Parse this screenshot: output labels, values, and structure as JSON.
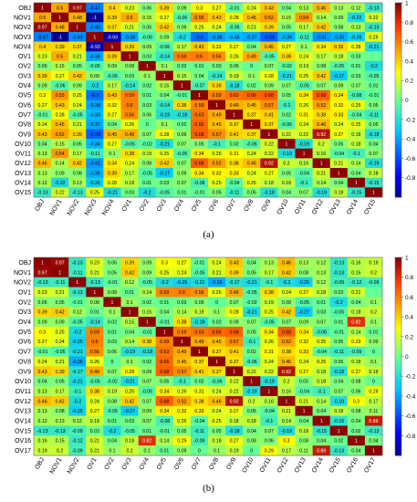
{
  "chart_data": [
    {
      "type": "heatmap",
      "panel_label": "(a)",
      "rows": [
        "OBJ",
        "NOV1",
        "NOV2",
        "NOV3",
        "NOV4",
        "OV1",
        "OV2",
        "OV3",
        "OV4",
        "OV5",
        "OV6",
        "OV7",
        "OV8",
        "OV9",
        "OV10",
        "OV11",
        "OV12",
        "OV13",
        "OV14",
        "OV15"
      ],
      "columns": [
        "OBJ",
        "NOV1",
        "NOV2",
        "NOV3",
        "NOV4",
        "OV1",
        "OV2",
        "OV3",
        "OV4",
        "OV5",
        "OV6",
        "OV7",
        "OV8",
        "OV9",
        "OV10",
        "OV11",
        "OV12",
        "OV13",
        "OV14",
        "OV15"
      ],
      "values": [
        [
          "1",
          "0.5",
          "0.97",
          "-0.47",
          "0.4",
          "0.23",
          "0.06",
          "0.39",
          "0.09",
          "0.3",
          "0.27",
          "-0.01",
          "0.24",
          "0.43",
          "0.04",
          "0.13",
          "0.46",
          "0.13",
          "0.12",
          "-0.13"
        ],
        [
          "0.5",
          "1",
          "0.48",
          "-1",
          "0.39",
          "0.5",
          "0.15",
          "0.27",
          "-0.06",
          "0.55",
          "0.43",
          "0.28",
          "0.45",
          "0.52",
          "0.15",
          "0.54",
          "0.14",
          "0.09",
          "-0.22",
          "0.22"
        ],
        [
          "0.97",
          "0.48",
          "1",
          "-0.43",
          "0.37",
          "0.21",
          "0.05",
          "0.42",
          "0.09",
          "0.25",
          "0.24",
          "-0.05",
          "0.21",
          "0.39",
          "0.05",
          "0.17",
          "0.42",
          "0.08",
          "0.13",
          "-0.13"
        ],
        [
          "-0.47",
          "-1",
          "-0.43",
          "1",
          "-0.93",
          "-0.38",
          "-0.06",
          "0.09",
          "-0.2",
          "-0.5",
          "-0.38",
          "-0.33",
          "-0.37",
          "-0.53",
          "-0.34",
          "-0.11",
          "-0.41",
          "-0.36",
          "-0.26",
          "0.25"
        ],
        [
          "0.4",
          "0.39",
          "0.37",
          "-0.93",
          "1",
          "0.39",
          "0.09",
          "-0.06",
          "0.17",
          "0.43",
          "0.32",
          "0.27",
          "0.04",
          "0.45",
          "0.27",
          "0.1",
          "0.34",
          "0.39",
          "0.28",
          "-0.21"
        ],
        [
          "0.23",
          "0.5",
          "0.21",
          "-0.38",
          "0.39",
          "1",
          "0.03",
          "-0.14",
          "0.59",
          "0.6",
          "0.56",
          "0.26",
          "0.49",
          "-0.05",
          "0.38",
          "0.24",
          "0.17",
          "0.18",
          "0.03",
          ""
        ],
        [
          "0.06",
          "0.15",
          "0.05",
          "-0.06",
          "0.09",
          "0.08",
          "1",
          "0.1",
          "0.02",
          "0.01",
          "0.03",
          "0.06",
          "0",
          "0.07",
          "-0.02",
          "0.19",
          "0.08",
          "-0.05",
          "0.01",
          "-0.2"
        ],
        [
          "0.39",
          "0.27",
          "0.42",
          "0.09",
          "-0.06",
          "0.03",
          "0.1",
          "1",
          "0.15",
          "0.04",
          "-0.14",
          "0.19",
          "0.1",
          "0.28",
          "-0.21",
          "0.25",
          "0.42",
          "-0.27",
          "0.03",
          "-0.05"
        ],
        [
          "0.09",
          "-0.06",
          "0.09",
          "-0.2",
          "0.17",
          "-0.14",
          "0.02",
          "0.15",
          "1",
          "-0.07",
          "0.38",
          "-0.18",
          "0.02",
          "0.09",
          "0.07",
          "-0.05",
          "0.07",
          "0.09",
          "0.07",
          "0.01"
        ],
        [
          "0.3",
          "0.55",
          "0.25",
          "-0.5",
          "0.43",
          "0.59",
          "0.01",
          "0.04",
          "-0.01",
          "1",
          "0.59",
          "0.63",
          "0.66",
          "0.68",
          "0.05",
          "0.34",
          "0.68",
          "0.34",
          "-0.08",
          "-0.01"
        ],
        [
          "0.27",
          "0.43",
          "0.24",
          "-0.38",
          "0.32",
          "0.6",
          "0.03",
          "-0.14",
          "0.38",
          "0.59",
          "1",
          "0.49",
          "0.45",
          "0.57",
          "-0.1",
          "0.26",
          "0.52",
          "0.32",
          "0.25",
          "0.05"
        ],
        [
          "-0.01",
          "0.28",
          "-0.05",
          "-0.33",
          "0.27",
          "0.56",
          "0.06",
          "-0.19",
          "-0.18",
          "0.63",
          "0.49",
          "1",
          "0.37",
          "0.41",
          "0.02",
          "0.31",
          "0.38",
          "0.33",
          "-0.04",
          "-0.11"
        ],
        [
          "0.24",
          "0.45",
          "0.21",
          "-0.37",
          "0.04",
          "0.26",
          "0",
          "0.1",
          "0.02",
          "0.66",
          "0.45",
          "0.37",
          "1",
          "0.37",
          "-0.06",
          "0.24",
          "0.46",
          "0.24",
          "0.25",
          "0.05"
        ],
        [
          "0.43",
          "0.52",
          "0.39",
          "-0.53",
          "0.45",
          "0.49",
          "0.07",
          "0.28",
          "0.09",
          "0.68",
          "0.57",
          "0.41",
          "0.37",
          "1",
          "0.22",
          "0.22",
          "0.92",
          "0.27",
          "0.18",
          "-0.18"
        ],
        [
          "0.04",
          "0.15",
          "0.05",
          "-0.34",
          "0.27",
          "-0.05",
          "-0.02",
          "-0.21",
          "0.07",
          "0.05",
          "-0.1",
          "0.02",
          "-0.06",
          "0.22",
          "1",
          "-0.19",
          "0.2",
          "0.05",
          "0.18",
          "0.04"
        ],
        [
          "0.13",
          "0.54",
          "0.17",
          "-0.11",
          "0.1",
          "0.38",
          "0.19",
          "0.25",
          "-0.05",
          "0.34",
          "0.26",
          "0.31",
          "0.24",
          "0.22",
          "-0.19",
          "1",
          "0.16",
          "-0.04",
          "-0.1",
          "0.07"
        ],
        [
          "0.46",
          "0.14",
          "0.42",
          "-0.41",
          "0.34",
          "0.24",
          "0.08",
          "0.42",
          "0.07",
          "0.68",
          "0.52",
          "0.38",
          "0.46",
          "0.92",
          "0.2",
          "0.16",
          "1",
          "0.21",
          "0.14",
          "-0.19"
        ],
        [
          "0.13",
          "0.09",
          "0.08",
          "-0.36",
          "0.39",
          "0.17",
          "-0.05",
          "-0.27",
          "0.09",
          "0.34",
          "0.32",
          "0.33",
          "0.24",
          "0.27",
          "0.05",
          "-0.04",
          "0.21",
          "1",
          "0.04",
          "0.18"
        ],
        [
          "0.12",
          "-0.22",
          "0.13",
          "-0.26",
          "0.28",
          "0.18",
          "0.01",
          "0.03",
          "0.07",
          "-0.08",
          "0.25",
          "-0.04",
          "0.25",
          "0.18",
          "0.18",
          "-0.1",
          "0.14",
          "0.04",
          "1",
          "-0.15"
        ],
        [
          "-0.13",
          "0.22",
          "-0.13",
          "0.25",
          "-0.21",
          "0.03",
          "-0.2",
          "-0.05",
          "0.01",
          "-0.01",
          "0.05",
          "-0.11",
          "0.05",
          "-0.18",
          "0.04",
          "0.07",
          "-0.19",
          "0.18",
          "-0.15",
          "1"
        ]
      ],
      "scale_ticks": [
        "1",
        "0.8",
        "0.6",
        "0.4",
        "0.2",
        "0",
        "-0.2",
        "-0.4",
        "-0.6",
        "-0.8"
      ],
      "vmin": -1,
      "vmax": 1
    },
    {
      "type": "heatmap",
      "panel_label": "(b)",
      "rows": [
        "OBJ",
        "NOV1",
        "NOV2",
        "OV1",
        "OV2",
        "OV3",
        "OV4",
        "OV5",
        "OV6",
        "OV7",
        "OV8",
        "OV9",
        "OV10",
        "OV11",
        "OV12",
        "OV13",
        "OV14",
        "OV15",
        "OV16",
        "OV17"
      ],
      "columns": [
        "OBJ",
        "NOV1",
        "NOV2",
        "OV1",
        "OV2",
        "OV3",
        "OV4",
        "OV5",
        "OV6",
        "OV7",
        "OV8",
        "OV9",
        "OV10",
        "OV11",
        "OV12",
        "OV13",
        "OV14",
        "OV15",
        "OV16",
        "OV17"
      ],
      "values": [
        [
          "1",
          "0.97",
          "-0.13",
          "0.23",
          "0.06",
          "0.39",
          "0.09",
          "0.3",
          "0.27",
          "-0.01",
          "0.24",
          "0.43",
          "0.04",
          "0.13",
          "0.46",
          "0.13",
          "0.12",
          "-0.13",
          "0.16",
          "0.19"
        ],
        [
          "0.97",
          "1",
          "-0.11",
          "0.21",
          "0.05",
          "0.42",
          "0.09",
          "0.25",
          "0.24",
          "-0.05",
          "0.21",
          "0.39",
          "0.05",
          "0.17",
          "0.42",
          "0.08",
          "0.13",
          "-0.13",
          "0.15",
          "0.2"
        ],
        [
          "-0.13",
          "-0.11",
          "1",
          "-0.13",
          "-0.01",
          "0.12",
          "-0.05",
          "-0.2",
          "-0.25",
          "-0.21",
          "-0.36",
          "-0.17",
          "-0.21",
          "-0.1",
          "-0.2",
          "-0.25",
          "0.12",
          "-0.09",
          "-0.12",
          "-0.09"
        ],
        [
          "0.23",
          "0.21",
          "-0.13",
          "1",
          "0.08",
          "0.01",
          "0.14",
          "0.59",
          "0.6",
          "0.56",
          "0.26",
          "0.49",
          "-0.05",
          "0.38",
          "0.24",
          "0.27",
          "0.18",
          "0.03",
          "0.21",
          ""
        ],
        [
          "0.06",
          "0.05",
          "-0.01",
          "0.08",
          "1",
          "0.1",
          "0.02",
          "0.01",
          "0.03",
          "0.06",
          "0",
          "0.07",
          "-0.02",
          "0.19",
          "0.08",
          "-0.05",
          "0.01",
          "-0.2",
          "0.04",
          "0.1"
        ],
        [
          "0.39",
          "0.42",
          "0.12",
          "0.01",
          "0.1",
          "1",
          "0.15",
          "0.04",
          "0.14",
          "0.19",
          "0.1",
          "0.28",
          "-0.21",
          "0.25",
          "0.42",
          "-0.27",
          "0.03",
          "-0.05",
          "0.18",
          "0.2"
        ],
        [
          "0.09",
          "0.09",
          "-0.05",
          "-0.14",
          "0.02",
          "0.15",
          "1",
          "-0.01",
          "0.38",
          "-0.18",
          "0.02",
          "0.09",
          "0.07",
          "-0.05",
          "0.07",
          "0.09",
          "0.07",
          "0.01",
          "0.82",
          "0.1"
        ],
        [
          "0.3",
          "0.25",
          "-0.2",
          "0.59",
          "0.01",
          "0.04",
          "-0.01",
          "1",
          "0.59",
          "0.63",
          "0.66",
          "0.68",
          "0.05",
          "0.34",
          "0.68",
          "0.34",
          "-0.08",
          "-0.01",
          "0.14",
          "0.01"
        ],
        [
          "0.27",
          "0.24",
          "-0.25",
          "0.6",
          "0.03",
          "0.14",
          "0.38",
          "0.59",
          "1",
          "0.49",
          "0.45",
          "0.57",
          "-0.1",
          "0.26",
          "0.52",
          "0.32",
          "0.25",
          "0.05",
          "0.29",
          "0.09"
        ],
        [
          "-0.01",
          "-0.05",
          "-0.21",
          "0.56",
          "0.06",
          "-0.19",
          "-0.18",
          "0.63",
          "0.49",
          "1",
          "0.37",
          "0.41",
          "0.02",
          "0.31",
          "0.38",
          "0.33",
          "-0.04",
          "-0.11",
          "-0.09",
          "0"
        ],
        [
          "0.24",
          "0.21",
          "-0.36",
          "0.26",
          "0",
          "0.1",
          "0.02",
          "0.66",
          "0.45",
          "0.37",
          "1",
          "0.37",
          "-0.06",
          "0.24",
          "0.46",
          "0.24",
          "0.25",
          "0.05",
          "0.18",
          "0.1"
        ],
        [
          "0.43",
          "0.39",
          "-0.17",
          "0.49",
          "0.07",
          "0.28",
          "0.09",
          "0.68",
          "0.57",
          "0.41",
          "0.37",
          "1",
          "0.22",
          "0.22",
          "0.92",
          "0.27",
          "0.18",
          "-0.18",
          "0.27",
          "0.19"
        ],
        [
          "0.04",
          "0.05",
          "-0.21",
          "-0.05",
          "-0.02",
          "-0.21",
          "0.07",
          "0.05",
          "-0.1",
          "0.02",
          "-0.06",
          "0.22",
          "1",
          "-0.19",
          "0.2",
          "0.05",
          "0.18",
          "0.04",
          "0.08",
          "0"
        ],
        [
          "0.13",
          "0.17",
          "-0.1",
          "0.38",
          "0.19",
          "0.25",
          "-0.05",
          "0.34",
          "0.26",
          "0.31",
          "0.24",
          "0.22",
          "-0.19",
          "1",
          "0.16",
          "-0.04",
          "-0.1",
          "0.07",
          "0.06",
          "0.29"
        ],
        [
          "0.46",
          "0.42",
          "-0.2",
          "0.24",
          "0.08",
          "0.42",
          "0.07",
          "0.68",
          "0.52",
          "0.38",
          "0.46",
          "0.92",
          "0.2",
          "0.16",
          "1",
          "0.21",
          "0.14",
          "-0.19",
          "0.3",
          "0.17"
        ],
        [
          "0.13",
          "0.08",
          "-0.25",
          "0.27",
          "-0.05",
          "-0.27",
          "0.09",
          "0.34",
          "0.32",
          "0.33",
          "0.24",
          "0.27",
          "0.05",
          "-0.04",
          "0.21",
          "1",
          "0.04",
          "0.18",
          "0.08",
          "0.11"
        ],
        [
          "0.12",
          "0.13",
          "0.12",
          "0.18",
          "0.01",
          "0.03",
          "0.07",
          "-0.08",
          "0.25",
          "-0.04",
          "0.25",
          "0.18",
          "0.18",
          "-0.1",
          "0.14",
          "0.04",
          "1",
          "-0.15",
          "0.04",
          "0.89"
        ],
        [
          "-0.13",
          "-0.13",
          "-0.09",
          "0.03",
          "-0.2",
          "-0.05",
          "0.01",
          "-0.01",
          "0.05",
          "-0.11",
          "0.05",
          "-0.18",
          "0.04",
          "0.07",
          "-0.19",
          "0.18",
          "-0.15",
          "1",
          "0.02",
          "-0.13"
        ],
        [
          "0.16",
          "0.15",
          "-0.12",
          "0.21",
          "0.04",
          "0.18",
          "0.82",
          "0.14",
          "0.29",
          "-0.09",
          "0.18",
          "0.27",
          "0.08",
          "0.06",
          "0.3",
          "0.08",
          "0.04",
          "0.02",
          "1",
          "0.04"
        ],
        [
          "0.19",
          "0.2",
          "-0.09",
          "0.21",
          "0.1",
          "0.2",
          "0.1",
          "0.01",
          "0.09",
          "0",
          "0.1",
          "0.19",
          "0",
          "0.29",
          "0.17",
          "0.11",
          "0.89",
          "-0.13",
          "0.04",
          "1"
        ]
      ],
      "scale_ticks": [
        "1",
        "0.8",
        "0.6",
        "0.4",
        "0.2",
        "0",
        "-0.2",
        "-0.4",
        "-0.6",
        "-0.8"
      ],
      "vmin": -1,
      "vmax": 1
    }
  ]
}
